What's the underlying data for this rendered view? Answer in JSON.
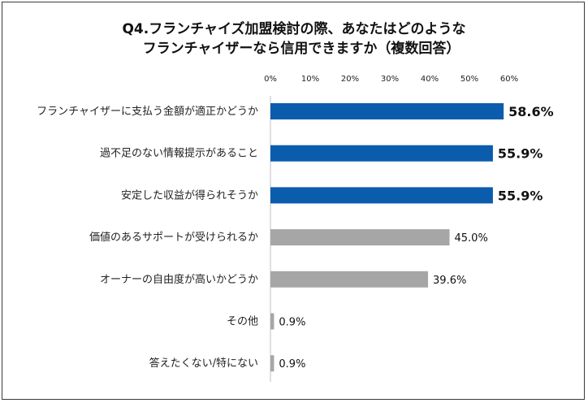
{
  "chart_data": {
    "type": "bar",
    "orientation": "horizontal",
    "title_lines": [
      "Q4.フランチャイズ加盟検討の際、あなたはどのような",
      "フランチャイザーなら信用できますか（複数回答）"
    ],
    "categories": [
      "フランチャイザーに支払う金額が適正かどうか",
      "過不足のない情報提示があること",
      "安定した収益が得られそうか",
      "価値のあるサポートが受けられるか",
      "オーナーの自由度が高いかどうか",
      "その他",
      "答えたくない/特にない"
    ],
    "values": [
      58.6,
      55.9,
      55.9,
      45.0,
      39.6,
      0.9,
      0.9
    ],
    "value_labels": [
      "58.6%",
      "55.9%",
      "55.9%",
      "45.0%",
      "39.6%",
      "0.9%",
      "0.9%"
    ],
    "highlight": [
      true,
      true,
      true,
      false,
      false,
      false,
      false
    ],
    "xlim": [
      0,
      60
    ],
    "xticks": [
      "0%",
      "10%",
      "20%",
      "30%",
      "40%",
      "50%",
      "60%"
    ],
    "axis_position": "top",
    "grid": false,
    "colors": {
      "highlight": "#0b5cad",
      "normal": "#a6a6a6"
    }
  }
}
